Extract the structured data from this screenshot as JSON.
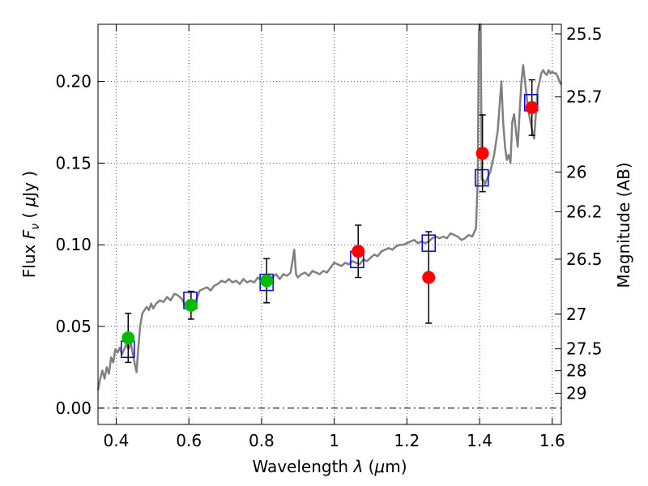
{
  "chart_data": {
    "type": "scatter",
    "title": "",
    "xlabel": "Wavelength  λ (μm)",
    "ylabel": "Flux  F_ν  ( μJy )",
    "ylabel_parts": {
      "pre": "Flux ",
      "symbol": "F",
      "subscript": "ν",
      "post": "  ( ",
      "mu": "μ",
      "unit": "Jy )"
    },
    "xlabel_parts": {
      "pre": "Wavelength  ",
      "lambda": "λ",
      "open": " (",
      "mu": "μ",
      "unit": "m)"
    },
    "y2label": "Magnitude (AB)",
    "xlim": [
      0.35,
      1.625
    ],
    "ylim": [
      -0.01,
      0.235
    ],
    "grid": true,
    "x_ticks": [
      {
        "value": 0.4,
        "label": "0.4"
      },
      {
        "value": 0.6,
        "label": "0.6"
      },
      {
        "value": 0.8,
        "label": "0.8"
      },
      {
        "value": 1.0,
        "label": "1"
      },
      {
        "value": 1.2,
        "label": "1.2"
      },
      {
        "value": 1.4,
        "label": "1.4"
      },
      {
        "value": 1.6,
        "label": "1.6"
      }
    ],
    "y_ticks": [
      {
        "value": 0.0,
        "label": "0.00"
      },
      {
        "value": 0.05,
        "label": "0.05"
      },
      {
        "value": 0.1,
        "label": "0.10"
      },
      {
        "value": 0.15,
        "label": "0.15"
      },
      {
        "value": 0.2,
        "label": "0.20"
      }
    ],
    "mag_ticks": [
      {
        "value": 25.5,
        "label": "25.5"
      },
      {
        "value": 25.7,
        "label": "25.7"
      },
      {
        "value": 26.0,
        "label": "26"
      },
      {
        "value": 26.2,
        "label": "26.2"
      },
      {
        "value": 26.5,
        "label": "26.5"
      },
      {
        "value": 27.0,
        "label": "27"
      },
      {
        "value": 27.5,
        "label": "27.5"
      },
      {
        "value": 28.0,
        "label": "28"
      },
      {
        "value": 29.0,
        "label": "29"
      }
    ],
    "colors": {
      "sed": "#808080",
      "model_box": "#0000cc",
      "green": "#00bb00",
      "red": "#ff0000",
      "error": "#000000",
      "grid": "#555555"
    },
    "sed_curve": [
      [
        0.35,
        0.011
      ],
      [
        0.356,
        0.018
      ],
      [
        0.362,
        0.023
      ],
      [
        0.368,
        0.018
      ],
      [
        0.374,
        0.025
      ],
      [
        0.38,
        0.021
      ],
      [
        0.386,
        0.031
      ],
      [
        0.392,
        0.028
      ],
      [
        0.398,
        0.036
      ],
      [
        0.404,
        0.034
      ],
      [
        0.41,
        0.037
      ],
      [
        0.416,
        0.033
      ],
      [
        0.422,
        0.036
      ],
      [
        0.428,
        0.039
      ],
      [
        0.434,
        0.036
      ],
      [
        0.44,
        0.04
      ],
      [
        0.446,
        0.033
      ],
      [
        0.452,
        0.026
      ],
      [
        0.456,
        0.022
      ],
      [
        0.46,
        0.034
      ],
      [
        0.466,
        0.05
      ],
      [
        0.472,
        0.058
      ],
      [
        0.478,
        0.06
      ],
      [
        0.484,
        0.062
      ],
      [
        0.49,
        0.06
      ],
      [
        0.496,
        0.064
      ],
      [
        0.502,
        0.061
      ],
      [
        0.51,
        0.064
      ],
      [
        0.52,
        0.066
      ],
      [
        0.53,
        0.065
      ],
      [
        0.54,
        0.068
      ],
      [
        0.55,
        0.066
      ],
      [
        0.56,
        0.07
      ],
      [
        0.57,
        0.069
      ],
      [
        0.58,
        0.067
      ],
      [
        0.59,
        0.063
      ],
      [
        0.6,
        0.061
      ],
      [
        0.61,
        0.065
      ],
      [
        0.62,
        0.066
      ],
      [
        0.63,
        0.072
      ],
      [
        0.64,
        0.073
      ],
      [
        0.65,
        0.074
      ],
      [
        0.66,
        0.072
      ],
      [
        0.67,
        0.075
      ],
      [
        0.68,
        0.076
      ],
      [
        0.69,
        0.078
      ],
      [
        0.7,
        0.077
      ],
      [
        0.71,
        0.079
      ],
      [
        0.72,
        0.077
      ],
      [
        0.73,
        0.078
      ],
      [
        0.74,
        0.076
      ],
      [
        0.75,
        0.079
      ],
      [
        0.76,
        0.077
      ],
      [
        0.77,
        0.078
      ],
      [
        0.78,
        0.077
      ],
      [
        0.79,
        0.08
      ],
      [
        0.8,
        0.078
      ],
      [
        0.81,
        0.079
      ],
      [
        0.82,
        0.081
      ],
      [
        0.83,
        0.08
      ],
      [
        0.84,
        0.082
      ],
      [
        0.85,
        0.079
      ],
      [
        0.86,
        0.082
      ],
      [
        0.87,
        0.081
      ],
      [
        0.88,
        0.083
      ],
      [
        0.89,
        0.097
      ],
      [
        0.895,
        0.082
      ],
      [
        0.9,
        0.08
      ],
      [
        0.91,
        0.082
      ],
      [
        0.92,
        0.083
      ],
      [
        0.93,
        0.081
      ],
      [
        0.94,
        0.084
      ],
      [
        0.95,
        0.083
      ],
      [
        0.96,
        0.082
      ],
      [
        0.97,
        0.084
      ],
      [
        0.98,
        0.083
      ],
      [
        0.99,
        0.086
      ],
      [
        1.0,
        0.089
      ],
      [
        1.01,
        0.088
      ],
      [
        1.02,
        0.087
      ],
      [
        1.03,
        0.089
      ],
      [
        1.04,
        0.088
      ],
      [
        1.05,
        0.09
      ],
      [
        1.06,
        0.089
      ],
      [
        1.07,
        0.088
      ],
      [
        1.08,
        0.091
      ],
      [
        1.09,
        0.09
      ],
      [
        1.1,
        0.092
      ],
      [
        1.11,
        0.094
      ],
      [
        1.12,
        0.093
      ],
      [
        1.13,
        0.096
      ],
      [
        1.14,
        0.097
      ],
      [
        1.15,
        0.098
      ],
      [
        1.16,
        0.097
      ],
      [
        1.17,
        0.099
      ],
      [
        1.18,
        0.1
      ],
      [
        1.19,
        0.1
      ],
      [
        1.2,
        0.101
      ],
      [
        1.21,
        0.102
      ],
      [
        1.22,
        0.103
      ],
      [
        1.23,
        0.101
      ],
      [
        1.24,
        0.102
      ],
      [
        1.25,
        0.101
      ],
      [
        1.26,
        0.102
      ],
      [
        1.27,
        0.104
      ],
      [
        1.28,
        0.105
      ],
      [
        1.29,
        0.104
      ],
      [
        1.3,
        0.105
      ],
      [
        1.31,
        0.104
      ],
      [
        1.32,
        0.107
      ],
      [
        1.33,
        0.106
      ],
      [
        1.34,
        0.105
      ],
      [
        1.35,
        0.103
      ],
      [
        1.36,
        0.104
      ],
      [
        1.37,
        0.106
      ],
      [
        1.38,
        0.105
      ],
      [
        1.39,
        0.11
      ],
      [
        1.395,
        0.14
      ],
      [
        1.398,
        0.23
      ],
      [
        1.4,
        0.235
      ],
      [
        1.403,
        0.235
      ],
      [
        1.406,
        0.14
      ],
      [
        1.41,
        0.14
      ],
      [
        1.415,
        0.137
      ],
      [
        1.42,
        0.14
      ],
      [
        1.43,
        0.145
      ],
      [
        1.44,
        0.155
      ],
      [
        1.45,
        0.17
      ],
      [
        1.46,
        0.2
      ],
      [
        1.465,
        0.175
      ],
      [
        1.47,
        0.16
      ],
      [
        1.475,
        0.152
      ],
      [
        1.48,
        0.155
      ],
      [
        1.485,
        0.15
      ],
      [
        1.49,
        0.175
      ],
      [
        1.495,
        0.18
      ],
      [
        1.5,
        0.17
      ],
      [
        1.505,
        0.16
      ],
      [
        1.51,
        0.18
      ],
      [
        1.515,
        0.2
      ],
      [
        1.52,
        0.21
      ],
      [
        1.525,
        0.2
      ],
      [
        1.53,
        0.19
      ],
      [
        1.535,
        0.182
      ],
      [
        1.54,
        0.175
      ],
      [
        1.545,
        0.17
      ],
      [
        1.55,
        0.165
      ],
      [
        1.555,
        0.18
      ],
      [
        1.56,
        0.195
      ],
      [
        1.565,
        0.2
      ],
      [
        1.57,
        0.205
      ],
      [
        1.575,
        0.207
      ],
      [
        1.58,
        0.205
      ],
      [
        1.585,
        0.204
      ],
      [
        1.59,
        0.207
      ],
      [
        1.595,
        0.205
      ],
      [
        1.6,
        0.206
      ],
      [
        1.605,
        0.205
      ],
      [
        1.61,
        0.205
      ],
      [
        1.615,
        0.203
      ],
      [
        1.62,
        0.2
      ],
      [
        1.625,
        0.198
      ]
    ],
    "model_points": [
      {
        "x": 0.432,
        "y": 0.036
      },
      {
        "x": 0.604,
        "y": 0.066
      },
      {
        "x": 0.814,
        "y": 0.077
      },
      {
        "x": 1.063,
        "y": 0.091
      },
      {
        "x": 1.26,
        "y": 0.101
      },
      {
        "x": 1.406,
        "y": 0.141
      },
      {
        "x": 1.542,
        "y": 0.187
      }
    ],
    "observed": [
      {
        "x": 0.433,
        "y": 0.043,
        "yerr": 0.015,
        "color": "green"
      },
      {
        "x": 0.606,
        "y": 0.063,
        "yerr": 0.0085,
        "color": "green"
      },
      {
        "x": 0.814,
        "y": 0.078,
        "yerr": 0.0135,
        "color": "green"
      },
      {
        "x": 1.066,
        "y": 0.096,
        "yerr": 0.016,
        "color": "red"
      },
      {
        "x": 1.26,
        "y": 0.08,
        "yerr": 0.028,
        "color": "red"
      },
      {
        "x": 1.408,
        "y": 0.156,
        "yerr": 0.0235,
        "color": "red"
      },
      {
        "x": 1.544,
        "y": 0.184,
        "yerr": 0.017,
        "color": "red"
      }
    ]
  }
}
